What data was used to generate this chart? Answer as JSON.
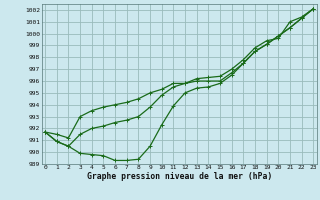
{
  "xlabel": "Graphe pression niveau de la mer (hPa)",
  "bg_color": "#cce8ee",
  "grid_color": "#99bbbb",
  "line_color": "#1a6b1a",
  "x_ticks": [
    0,
    1,
    2,
    3,
    4,
    5,
    6,
    7,
    8,
    9,
    10,
    11,
    12,
    13,
    14,
    15,
    16,
    17,
    18,
    19,
    20,
    21,
    22,
    23
  ],
  "ylim": [
    989,
    1002.5
  ],
  "xlim": [
    -0.3,
    23.3
  ],
  "series1": [
    991.7,
    990.9,
    990.5,
    989.9,
    989.8,
    989.7,
    989.3,
    989.3,
    989.4,
    990.5,
    992.3,
    993.9,
    995.0,
    995.4,
    995.5,
    995.8,
    996.5,
    997.5,
    998.5,
    999.1,
    999.8,
    1000.5,
    1001.3,
    1002.1
  ],
  "series2": [
    991.7,
    990.9,
    990.5,
    991.5,
    992.0,
    992.2,
    992.5,
    992.7,
    993.0,
    993.8,
    994.8,
    995.5,
    995.8,
    996.0,
    996.0,
    996.0,
    996.7,
    997.5,
    998.5,
    999.1,
    999.8,
    1000.5,
    1001.3,
    1002.1
  ],
  "series3": [
    991.7,
    991.5,
    991.2,
    993.0,
    993.5,
    993.8,
    994.0,
    994.2,
    994.5,
    995.0,
    995.3,
    995.8,
    995.8,
    996.2,
    996.3,
    996.4,
    997.0,
    997.8,
    998.8,
    999.4,
    999.6,
    1001.0,
    1001.4,
    1002.1
  ],
  "yticks": [
    989,
    990,
    991,
    992,
    993,
    994,
    995,
    996,
    997,
    998,
    999,
    1000,
    1001,
    1002
  ],
  "xlabel_fontsize": 5.8,
  "tick_fontsize": 4.5
}
